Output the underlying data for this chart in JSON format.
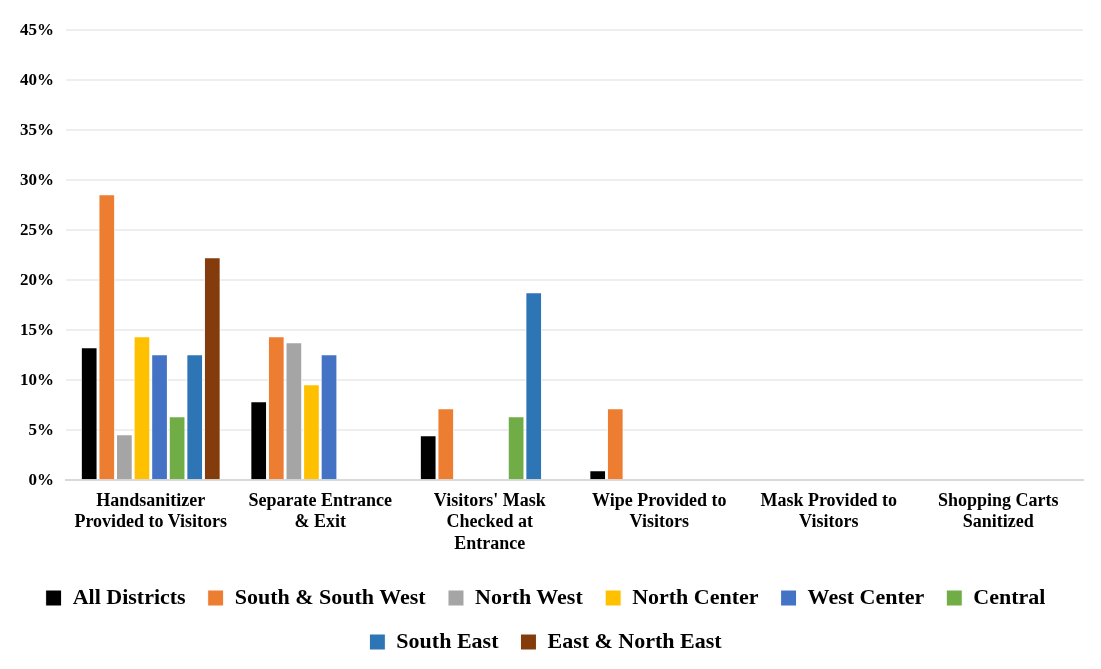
{
  "chart_data": {
    "type": "bar",
    "categories": [
      "Handsanitizer Provided to Visitors",
      "Separate Entrance & Exit",
      "Visitors' Mask Checked at Entrance",
      "Wipe Provided to Visitors",
      "Mask Provided to Visitors",
      "Shopping Carts Sanitized"
    ],
    "series": [
      {
        "name": "All Districts",
        "color": "#000000",
        "values": [
          13.3,
          7.9,
          4.5,
          1.0,
          0,
          0
        ]
      },
      {
        "name": "South & South West",
        "color": "#ed7d31",
        "values": [
          28.6,
          14.4,
          7.2,
          7.2,
          0,
          0
        ]
      },
      {
        "name": "North West",
        "color": "#a5a5a5",
        "values": [
          4.6,
          13.8,
          0,
          0,
          0,
          0
        ]
      },
      {
        "name": "North Center",
        "color": "#ffc000",
        "values": [
          14.4,
          9.6,
          0,
          0,
          0,
          0
        ]
      },
      {
        "name": "West Center",
        "color": "#4472c4",
        "values": [
          12.6,
          12.6,
          0,
          0,
          0,
          0
        ]
      },
      {
        "name": "Central",
        "color": "#70ad47",
        "values": [
          6.4,
          0,
          6.4,
          0,
          0,
          0
        ]
      },
      {
        "name": "South East",
        "color": "#2e75b6",
        "values": [
          12.6,
          0,
          18.8,
          0,
          0,
          0
        ]
      },
      {
        "name": "East & North East",
        "color": "#843c0c",
        "values": [
          22.3,
          0,
          0,
          0,
          0,
          0
        ]
      }
    ],
    "ylim": [
      0,
      45
    ],
    "yticks": [
      {
        "value": 0,
        "label": "0%"
      },
      {
        "value": 5,
        "label": "5%"
      },
      {
        "value": 10,
        "label": "10%"
      },
      {
        "value": 15,
        "label": "15%"
      },
      {
        "value": 20,
        "label": "20%"
      },
      {
        "value": 25,
        "label": "25%"
      },
      {
        "value": 30,
        "label": "30%"
      },
      {
        "value": 35,
        "label": "35%"
      },
      {
        "value": 40,
        "label": "40%"
      },
      {
        "value": 45,
        "label": "45%"
      }
    ],
    "grid": "y",
    "legend": "bottom"
  }
}
